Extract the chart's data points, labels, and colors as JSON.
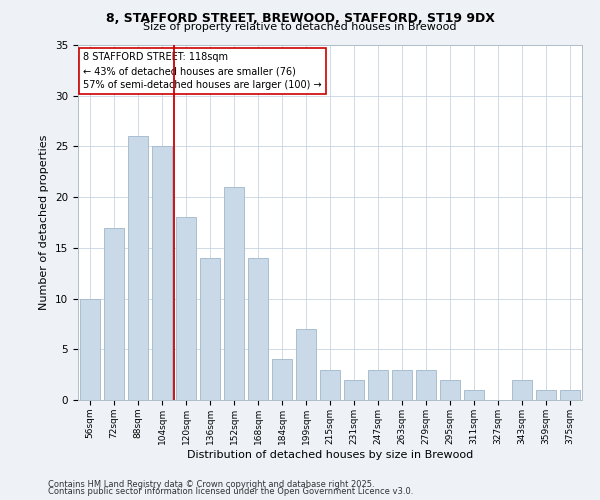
{
  "title_line1": "8, STAFFORD STREET, BREWOOD, STAFFORD, ST19 9DX",
  "title_line2": "Size of property relative to detached houses in Brewood",
  "xlabel": "Distribution of detached houses by size in Brewood",
  "ylabel": "Number of detached properties",
  "categories": [
    "56sqm",
    "72sqm",
    "88sqm",
    "104sqm",
    "120sqm",
    "136sqm",
    "152sqm",
    "168sqm",
    "184sqm",
    "199sqm",
    "215sqm",
    "231sqm",
    "247sqm",
    "263sqm",
    "279sqm",
    "295sqm",
    "311sqm",
    "327sqm",
    "343sqm",
    "359sqm",
    "375sqm"
  ],
  "values": [
    10,
    17,
    26,
    25,
    18,
    14,
    21,
    14,
    4,
    7,
    3,
    2,
    3,
    3,
    3,
    2,
    1,
    0,
    2,
    1,
    1
  ],
  "bar_color": "#c9d9e8",
  "bar_edge_color": "#a0b8cc",
  "vline_color": "#cc0000",
  "annotation_text": "8 STAFFORD STREET: 118sqm\n← 43% of detached houses are smaller (76)\n57% of semi-detached houses are larger (100) →",
  "annotation_box_color": "#ffffff",
  "annotation_box_edge": "#cc0000",
  "ylim": [
    0,
    35
  ],
  "yticks": [
    0,
    5,
    10,
    15,
    20,
    25,
    30,
    35
  ],
  "footer_line1": "Contains HM Land Registry data © Crown copyright and database right 2025.",
  "footer_line2": "Contains public sector information licensed under the Open Government Licence v3.0.",
  "bg_color": "#eef2f7",
  "plot_bg_color": "#ffffff",
  "grid_color": "#c8d4e0"
}
